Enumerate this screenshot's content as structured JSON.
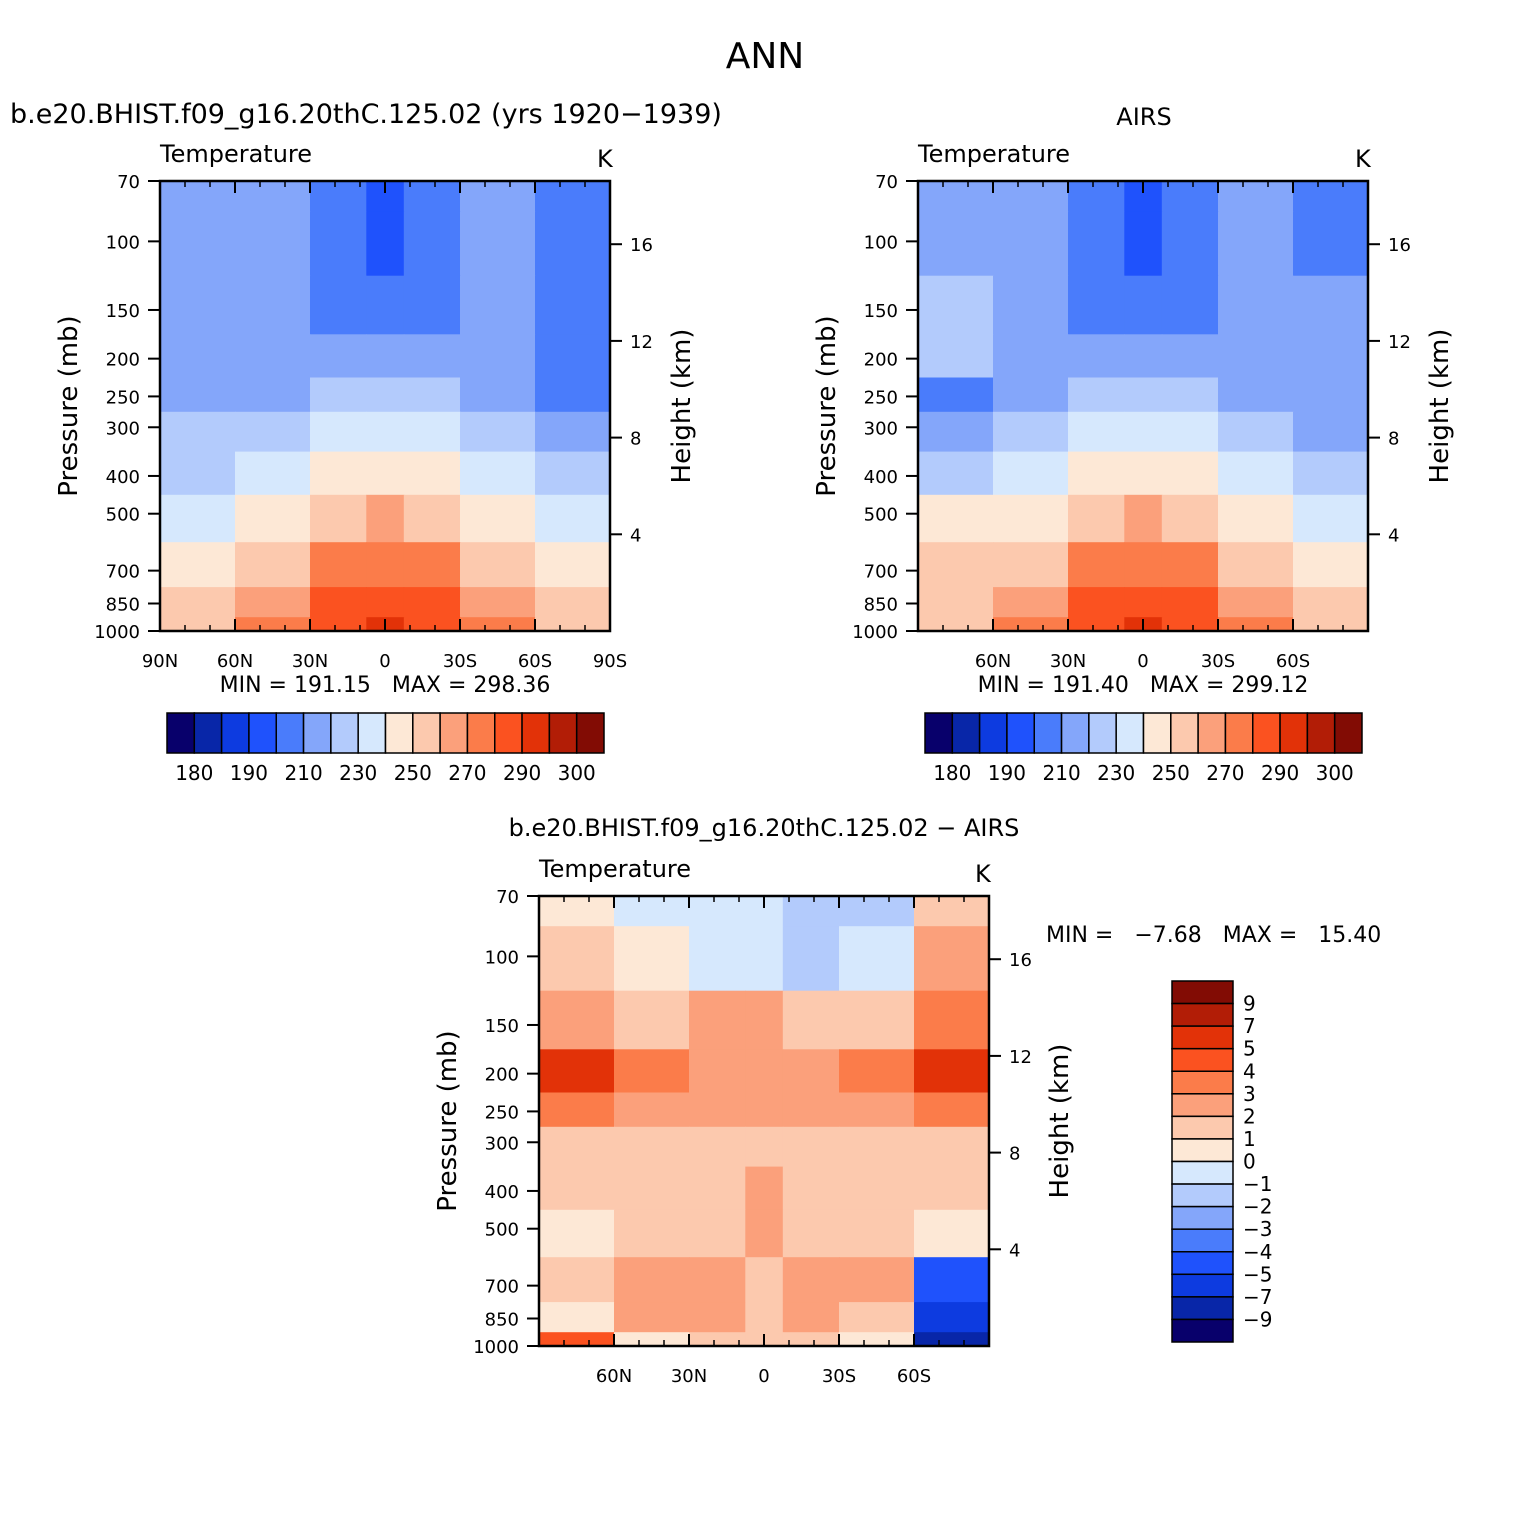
{
  "figure": {
    "title": "ANN"
  },
  "panels": [
    {
      "id": "model",
      "header": "b.e20.BHIST.f09_g16.20thC.125.02 (yrs 1920−1939)",
      "variable": "Temperature",
      "units": "K",
      "left_axis_title": "Pressure (mb)",
      "right_axis_title": "Height (km)",
      "stats": "MIN = 191.15   MAX = 298.36"
    },
    {
      "id": "obs",
      "header": "AIRS",
      "variable": "Temperature",
      "units": "K",
      "left_axis_title": "Pressure (mb)",
      "right_axis_title": "Height (km)",
      "stats": "MIN = 191.40   MAX = 299.12"
    },
    {
      "id": "diff",
      "header": "b.e20.BHIST.f09_g16.20thC.125.02 − AIRS",
      "variable": "Temperature",
      "units": "K",
      "left_axis_title": "Pressure (mb)",
      "right_axis_title": "Height (km)",
      "stats": "MIN =   −7.68   MAX =   15.40"
    }
  ],
  "chart_data": [
    {
      "type": "heatmap",
      "subtype": "filled-contour latitude-pressure cross-section",
      "title": "b.e20.BHIST.f09_g16.20thC.125.02 (yrs 1920−1939)",
      "variable": "Temperature",
      "units": "K",
      "x_tick_labels": [
        "90N",
        "60N",
        "30N",
        "0",
        "30S",
        "60S",
        "90S"
      ],
      "x_values": [
        90,
        60,
        30,
        0,
        -30,
        -60,
        -90
      ],
      "y_tick_labels": [
        "70",
        "100",
        "150",
        "200",
        "250",
        "300",
        "400",
        "500",
        "700",
        "850",
        "1000"
      ],
      "y_values_mb": [
        70,
        100,
        150,
        200,
        250,
        300,
        400,
        500,
        700,
        850,
        1000
      ],
      "y_scale": "log",
      "height_tick_labels": [
        "16",
        "12",
        "8",
        "4"
      ],
      "height_values_km": [
        16,
        12,
        8,
        4
      ],
      "ylabel": "Pressure (mb)",
      "ylabel_right": "Height (km)",
      "min": 191.15,
      "max": 298.36,
      "colorbar_orientation": "horizontal",
      "colorbar_labels": [
        "180",
        "190",
        "210",
        "230",
        "250",
        "270",
        "290",
        "300"
      ],
      "colorbar_colors": [
        "#08006b",
        "#0826a8",
        "#0d3be0",
        "#1f52fc",
        "#4a7cfb",
        "#84a6fa",
        "#b3cbfc",
        "#d6e8fd",
        "#fde8d6",
        "#fcc9ae",
        "#fba07b",
        "#fb7c4a",
        "#fb5220",
        "#e23208",
        "#b21d06",
        "#820c04"
      ],
      "field_mid_latitudes": [
        75,
        45,
        15,
        0,
        -15,
        -45,
        -75
      ],
      "field_level_index": [
        [
          5,
          5,
          4,
          3,
          4,
          5,
          4
        ],
        [
          5,
          5,
          4,
          3,
          4,
          5,
          4
        ],
        [
          5,
          5,
          4,
          4,
          4,
          5,
          4
        ],
        [
          5,
          5,
          5,
          5,
          5,
          5,
          4
        ],
        [
          5,
          5,
          6,
          6,
          6,
          5,
          4
        ],
        [
          6,
          6,
          7,
          7,
          7,
          6,
          5
        ],
        [
          6,
          7,
          8,
          8,
          8,
          7,
          6
        ],
        [
          7,
          8,
          9,
          10,
          9,
          8,
          7
        ],
        [
          8,
          9,
          11,
          11,
          11,
          9,
          8
        ],
        [
          9,
          10,
          12,
          12,
          12,
          10,
          9
        ],
        [
          9,
          11,
          12,
          13,
          12,
          11,
          9
        ]
      ]
    },
    {
      "type": "heatmap",
      "subtype": "filled-contour latitude-pressure cross-section",
      "title": "AIRS",
      "variable": "Temperature",
      "units": "K",
      "x_tick_labels": [
        "60N",
        "30N",
        "0",
        "30S",
        "60S"
      ],
      "x_values": [
        60,
        30,
        0,
        -30,
        -60
      ],
      "y_tick_labels": [
        "70",
        "100",
        "150",
        "200",
        "250",
        "300",
        "400",
        "500",
        "700",
        "850",
        "1000"
      ],
      "y_values_mb": [
        70,
        100,
        150,
        200,
        250,
        300,
        400,
        500,
        700,
        850,
        1000
      ],
      "y_scale": "log",
      "height_tick_labels": [
        "16",
        "12",
        "8",
        "4"
      ],
      "height_values_km": [
        16,
        12,
        8,
        4
      ],
      "ylabel": "Pressure (mb)",
      "ylabel_right": "Height (km)",
      "min": 191.4,
      "max": 299.12,
      "colorbar_orientation": "horizontal",
      "colorbar_labels": [
        "180",
        "190",
        "210",
        "230",
        "250",
        "270",
        "290",
        "300"
      ],
      "colorbar_colors": [
        "#08006b",
        "#0826a8",
        "#0d3be0",
        "#1f52fc",
        "#4a7cfb",
        "#84a6fa",
        "#b3cbfc",
        "#d6e8fd",
        "#fde8d6",
        "#fcc9ae",
        "#fba07b",
        "#fb7c4a",
        "#fb5220",
        "#e23208",
        "#b21d06",
        "#820c04"
      ],
      "field_mid_latitudes": [
        75,
        45,
        15,
        0,
        -15,
        -45,
        -75
      ],
      "field_level_index": [
        [
          5,
          5,
          4,
          3,
          4,
          5,
          4
        ],
        [
          5,
          5,
          4,
          3,
          4,
          5,
          4
        ],
        [
          6,
          5,
          4,
          4,
          4,
          5,
          5
        ],
        [
          6,
          5,
          5,
          5,
          5,
          5,
          5
        ],
        [
          4,
          5,
          6,
          6,
          6,
          5,
          5
        ],
        [
          5,
          6,
          7,
          7,
          7,
          6,
          5
        ],
        [
          6,
          7,
          8,
          8,
          8,
          7,
          6
        ],
        [
          8,
          8,
          9,
          10,
          9,
          8,
          7
        ],
        [
          9,
          9,
          11,
          11,
          11,
          9,
          8
        ],
        [
          9,
          10,
          12,
          12,
          12,
          10,
          9
        ],
        [
          9,
          11,
          12,
          13,
          12,
          11,
          9
        ]
      ]
    },
    {
      "type": "heatmap",
      "subtype": "filled-contour latitude-pressure cross-section (difference)",
      "title": "b.e20.BHIST.f09_g16.20thC.125.02 − AIRS",
      "variable": "Temperature",
      "units": "K",
      "x_tick_labels": [
        "60N",
        "30N",
        "0",
        "30S",
        "60S"
      ],
      "x_values": [
        60,
        30,
        0,
        -30,
        -60
      ],
      "y_tick_labels": [
        "70",
        "100",
        "150",
        "200",
        "250",
        "300",
        "400",
        "500",
        "700",
        "850",
        "1000"
      ],
      "y_values_mb": [
        70,
        100,
        150,
        200,
        250,
        300,
        400,
        500,
        700,
        850,
        1000
      ],
      "y_scale": "log",
      "height_tick_labels": [
        "16",
        "12",
        "8",
        "4"
      ],
      "height_values_km": [
        16,
        12,
        8,
        4
      ],
      "ylabel": "Pressure (mb)",
      "ylabel_right": "Height (km)",
      "min": -7.68,
      "max": 15.4,
      "colorbar_orientation": "vertical",
      "colorbar_labels": [
        "9",
        "7",
        "5",
        "4",
        "3",
        "2",
        "1",
        "0",
        "−1",
        "−2",
        "−3",
        "−4",
        "−5",
        "−7",
        "−9"
      ],
      "colorbar_colors": [
        "#820c04",
        "#b21d06",
        "#e23208",
        "#fb5220",
        "#fb7c4a",
        "#fba07b",
        "#fcc9ae",
        "#fde8d6",
        "#d6e8fd",
        "#b3cbfc",
        "#84a6fa",
        "#4a7cfb",
        "#1f52fc",
        "#0d3be0",
        "#0826a8",
        "#08006b"
      ],
      "field_mid_latitudes": [
        75,
        45,
        15,
        0,
        -15,
        -45,
        -75
      ],
      "field_level_index": [
        [
          7,
          8,
          8,
          8,
          9,
          9,
          6
        ],
        [
          6,
          7,
          8,
          8,
          9,
          8,
          5
        ],
        [
          5,
          6,
          5,
          5,
          6,
          6,
          4
        ],
        [
          2,
          4,
          5,
          5,
          5,
          4,
          2
        ],
        [
          4,
          5,
          5,
          5,
          5,
          5,
          4
        ],
        [
          6,
          6,
          6,
          6,
          6,
          6,
          6
        ],
        [
          6,
          6,
          6,
          5,
          6,
          6,
          6
        ],
        [
          7,
          6,
          6,
          5,
          6,
          6,
          7
        ],
        [
          6,
          5,
          5,
          6,
          5,
          5,
          12
        ],
        [
          7,
          5,
          5,
          6,
          5,
          6,
          13
        ],
        [
          3,
          7,
          6,
          6,
          6,
          7,
          14
        ]
      ]
    }
  ]
}
